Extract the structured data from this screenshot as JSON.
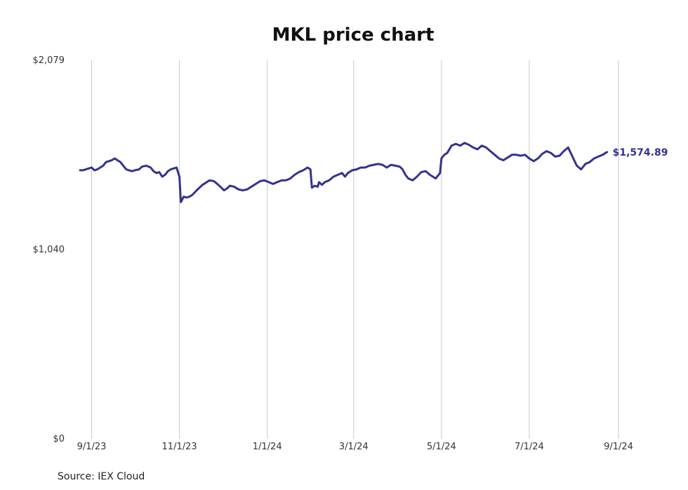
{
  "chart_data": {
    "type": "line",
    "title": "MKL price chart",
    "source": "Source: IEX Cloud",
    "y_ticks": [
      "$0",
      "$1,040",
      "$2,079"
    ],
    "ylim": [
      0,
      2079
    ],
    "x_ticks": [
      {
        "date": "2023-09-01",
        "label": "9/1/23"
      },
      {
        "date": "2023-11-01",
        "label": "11/1/23"
      },
      {
        "date": "2024-01-01",
        "label": "1/1/24"
      },
      {
        "date": "2024-03-01",
        "label": "3/1/24"
      },
      {
        "date": "2024-05-01",
        "label": "5/1/24"
      },
      {
        "date": "2024-07-01",
        "label": "7/1/24"
      },
      {
        "date": "2024-09-01",
        "label": "9/1/24"
      }
    ],
    "xlim": [
      "2023-08-22",
      "2024-09-20"
    ],
    "grid": "vertical",
    "color": "#33338f",
    "last_value_label": "$1,574.89",
    "series": [
      {
        "points": [
          [
            "2023-08-24",
            1475
          ],
          [
            "2023-08-26",
            1475
          ],
          [
            "2023-08-28",
            1480
          ],
          [
            "2023-08-30",
            1485
          ],
          [
            "2023-09-01",
            1490
          ],
          [
            "2023-09-03",
            1475
          ],
          [
            "2023-09-05",
            1480
          ],
          [
            "2023-09-07",
            1490
          ],
          [
            "2023-09-09",
            1500
          ],
          [
            "2023-09-11",
            1520
          ],
          [
            "2023-09-13",
            1525
          ],
          [
            "2023-09-15",
            1530
          ],
          [
            "2023-09-17",
            1540
          ],
          [
            "2023-09-19",
            1530
          ],
          [
            "2023-09-21",
            1520
          ],
          [
            "2023-09-23",
            1500
          ],
          [
            "2023-09-25",
            1480
          ],
          [
            "2023-09-27",
            1475
          ],
          [
            "2023-09-29",
            1470
          ],
          [
            "2023-10-01",
            1475
          ],
          [
            "2023-10-04",
            1480
          ],
          [
            "2023-10-06",
            1495
          ],
          [
            "2023-10-09",
            1500
          ],
          [
            "2023-10-12",
            1490
          ],
          [
            "2023-10-14",
            1470
          ],
          [
            "2023-10-16",
            1460
          ],
          [
            "2023-10-18",
            1465
          ],
          [
            "2023-10-20",
            1440
          ],
          [
            "2023-10-22",
            1450
          ],
          [
            "2023-10-24",
            1470
          ],
          [
            "2023-10-26",
            1480
          ],
          [
            "2023-10-28",
            1485
          ],
          [
            "2023-10-30",
            1490
          ],
          [
            "2023-11-01",
            1440
          ],
          [
            "2023-11-02",
            1300
          ],
          [
            "2023-11-04",
            1330
          ],
          [
            "2023-11-06",
            1325
          ],
          [
            "2023-11-08",
            1330
          ],
          [
            "2023-11-10",
            1340
          ],
          [
            "2023-11-13",
            1365
          ],
          [
            "2023-11-15",
            1380
          ],
          [
            "2023-11-17",
            1395
          ],
          [
            "2023-11-20",
            1410
          ],
          [
            "2023-11-22",
            1420
          ],
          [
            "2023-11-25",
            1415
          ],
          [
            "2023-11-28",
            1395
          ],
          [
            "2023-11-30",
            1380
          ],
          [
            "2023-12-02",
            1365
          ],
          [
            "2023-12-04",
            1375
          ],
          [
            "2023-12-06",
            1390
          ],
          [
            "2023-12-09",
            1385
          ],
          [
            "2023-12-12",
            1370
          ],
          [
            "2023-12-15",
            1365
          ],
          [
            "2023-12-18",
            1370
          ],
          [
            "2023-12-21",
            1385
          ],
          [
            "2023-12-24",
            1400
          ],
          [
            "2023-12-27",
            1415
          ],
          [
            "2023-12-30",
            1420
          ],
          [
            "2024-01-02",
            1410
          ],
          [
            "2024-01-05",
            1400
          ],
          [
            "2024-01-08",
            1410
          ],
          [
            "2024-01-11",
            1420
          ],
          [
            "2024-01-14",
            1420
          ],
          [
            "2024-01-17",
            1430
          ],
          [
            "2024-01-20",
            1450
          ],
          [
            "2024-01-23",
            1465
          ],
          [
            "2024-01-26",
            1475
          ],
          [
            "2024-01-29",
            1490
          ],
          [
            "2024-01-31",
            1480
          ],
          [
            "2024-02-01",
            1380
          ],
          [
            "2024-02-03",
            1390
          ],
          [
            "2024-02-05",
            1385
          ],
          [
            "2024-02-06",
            1410
          ],
          [
            "2024-02-08",
            1395
          ],
          [
            "2024-02-10",
            1410
          ],
          [
            "2024-02-13",
            1420
          ],
          [
            "2024-02-16",
            1440
          ],
          [
            "2024-02-19",
            1450
          ],
          [
            "2024-02-22",
            1460
          ],
          [
            "2024-02-24",
            1440
          ],
          [
            "2024-02-26",
            1460
          ],
          [
            "2024-02-29",
            1475
          ],
          [
            "2024-03-03",
            1480
          ],
          [
            "2024-03-06",
            1490
          ],
          [
            "2024-03-09",
            1490
          ],
          [
            "2024-03-12",
            1500
          ],
          [
            "2024-03-15",
            1505
          ],
          [
            "2024-03-18",
            1510
          ],
          [
            "2024-03-21",
            1505
          ],
          [
            "2024-03-24",
            1490
          ],
          [
            "2024-03-27",
            1505
          ],
          [
            "2024-03-30",
            1500
          ],
          [
            "2024-04-02",
            1495
          ],
          [
            "2024-04-04",
            1480
          ],
          [
            "2024-04-06",
            1450
          ],
          [
            "2024-04-08",
            1430
          ],
          [
            "2024-04-11",
            1420
          ],
          [
            "2024-04-14",
            1440
          ],
          [
            "2024-04-17",
            1465
          ],
          [
            "2024-04-20",
            1470
          ],
          [
            "2024-04-23",
            1450
          ],
          [
            "2024-04-27",
            1430
          ],
          [
            "2024-04-30",
            1460
          ],
          [
            "2024-05-01",
            1540
          ],
          [
            "2024-05-03",
            1560
          ],
          [
            "2024-05-05",
            1570
          ],
          [
            "2024-05-08",
            1610
          ],
          [
            "2024-05-11",
            1620
          ],
          [
            "2024-05-14",
            1610
          ],
          [
            "2024-05-17",
            1625
          ],
          [
            "2024-05-20",
            1615
          ],
          [
            "2024-05-23",
            1600
          ],
          [
            "2024-05-26",
            1590
          ],
          [
            "2024-05-29",
            1610
          ],
          [
            "2024-06-01",
            1600
          ],
          [
            "2024-06-04",
            1580
          ],
          [
            "2024-06-07",
            1560
          ],
          [
            "2024-06-10",
            1540
          ],
          [
            "2024-06-13",
            1530
          ],
          [
            "2024-06-16",
            1545
          ],
          [
            "2024-06-19",
            1560
          ],
          [
            "2024-06-22",
            1560
          ],
          [
            "2024-06-25",
            1555
          ],
          [
            "2024-06-28",
            1560
          ],
          [
            "2024-07-01",
            1540
          ],
          [
            "2024-07-04",
            1525
          ],
          [
            "2024-07-07",
            1540
          ],
          [
            "2024-07-10",
            1565
          ],
          [
            "2024-07-13",
            1580
          ],
          [
            "2024-07-16",
            1570
          ],
          [
            "2024-07-19",
            1550
          ],
          [
            "2024-07-22",
            1555
          ],
          [
            "2024-07-25",
            1580
          ],
          [
            "2024-07-28",
            1600
          ],
          [
            "2024-07-31",
            1550
          ],
          [
            "2024-08-03",
            1500
          ],
          [
            "2024-08-06",
            1480
          ],
          [
            "2024-08-09",
            1510
          ],
          [
            "2024-08-12",
            1520
          ],
          [
            "2024-08-15",
            1540
          ],
          [
            "2024-08-18",
            1550
          ],
          [
            "2024-08-21",
            1560
          ],
          [
            "2024-08-24",
            1574.89
          ]
        ]
      }
    ]
  }
}
